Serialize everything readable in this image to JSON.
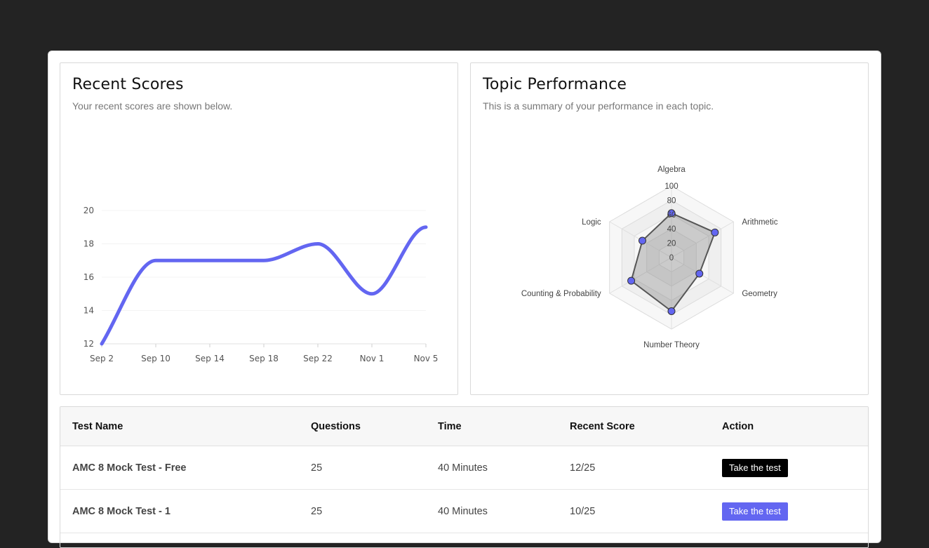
{
  "recent_scores": {
    "title": "Recent Scores",
    "subtitle": "Your recent scores are shown below."
  },
  "topic_performance": {
    "title": "Topic Performance",
    "subtitle": "This is a summary of your performance in each topic."
  },
  "chart_data": [
    {
      "type": "line",
      "x": [
        "Sep 2",
        "Sep 10",
        "Sep 14",
        "Sep 18",
        "Sep 22",
        "Nov 1",
        "Nov 5"
      ],
      "series": [
        {
          "values": [
            12,
            17,
            17,
            17,
            18,
            15,
            19
          ]
        }
      ],
      "yticks": [
        12,
        14,
        16,
        18,
        20
      ],
      "ylim": [
        12,
        20
      ],
      "color": "#6366f1",
      "grid": false
    },
    {
      "type": "radar",
      "categories": [
        "Algebra",
        "Arithmetic",
        "Geometry",
        "Number Theory",
        "Counting & Probability",
        "Logic"
      ],
      "values": [
        62,
        70,
        45,
        75,
        65,
        47
      ],
      "rticks": [
        0,
        20,
        40,
        60,
        80,
        100
      ],
      "rlim": [
        0,
        100
      ],
      "point_color": "#6366f1"
    }
  ],
  "table": {
    "headers": [
      "Test Name",
      "Questions",
      "Time",
      "Recent Score",
      "Action"
    ],
    "rows": [
      {
        "name": "AMC 8 Mock Test - Free",
        "questions": "25",
        "time": "40 Minutes",
        "score": "12/25",
        "action": "Take the test"
      },
      {
        "name": "AMC 8 Mock Test - 1",
        "questions": "25",
        "time": "40 Minutes",
        "score": "10/25",
        "action": "Take the test"
      }
    ]
  }
}
